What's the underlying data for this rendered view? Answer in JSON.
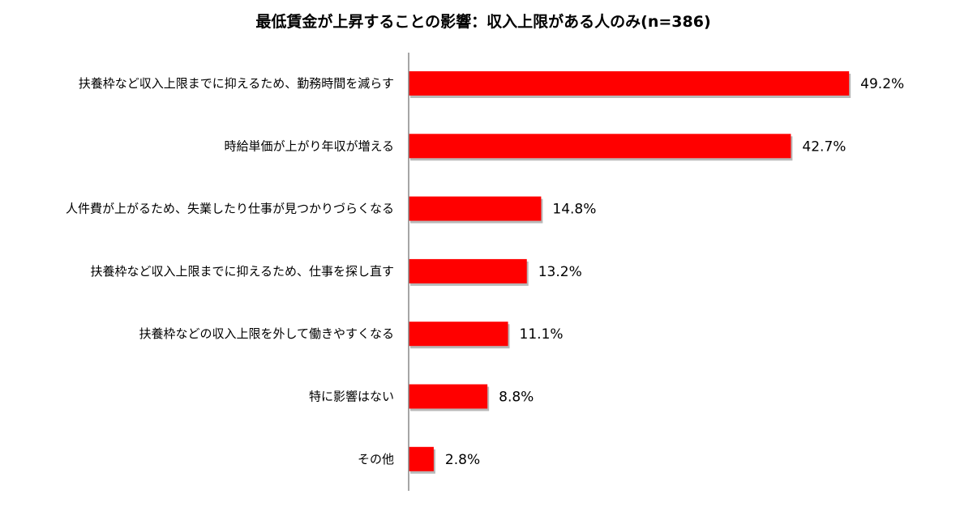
{
  "chart_data": {
    "type": "bar",
    "orientation": "horizontal",
    "title": "最低賃金が上昇することの影響：収入上限がある人のみ(n=386)",
    "categories": [
      "扶養枠など収入上限までに抑えるため、勤務時間を減らす",
      "時給単価が上がり年収が増える",
      "人件費が上がるため、失業したり仕事が見つかりづらくなる",
      "扶養枠など収入上限までに抑えるため、仕事を探し直す",
      "扶養枠などの収入上限を外して働きやすくなる",
      "特に影響はない",
      "その他"
    ],
    "values": [
      49.2,
      42.7,
      14.8,
      13.2,
      11.1,
      8.8,
      2.8
    ],
    "value_labels": [
      "49.2%",
      "42.7%",
      "14.8%",
      "13.2%",
      "11.1%",
      "8.8%",
      "2.8%"
    ],
    "xlim": [
      0,
      55
    ],
    "unit": "%",
    "grid": false,
    "legend": "none",
    "bar_color": "#ff0000",
    "bar_shadow_color": "#b8b8b8",
    "axis_color": "#888888"
  }
}
